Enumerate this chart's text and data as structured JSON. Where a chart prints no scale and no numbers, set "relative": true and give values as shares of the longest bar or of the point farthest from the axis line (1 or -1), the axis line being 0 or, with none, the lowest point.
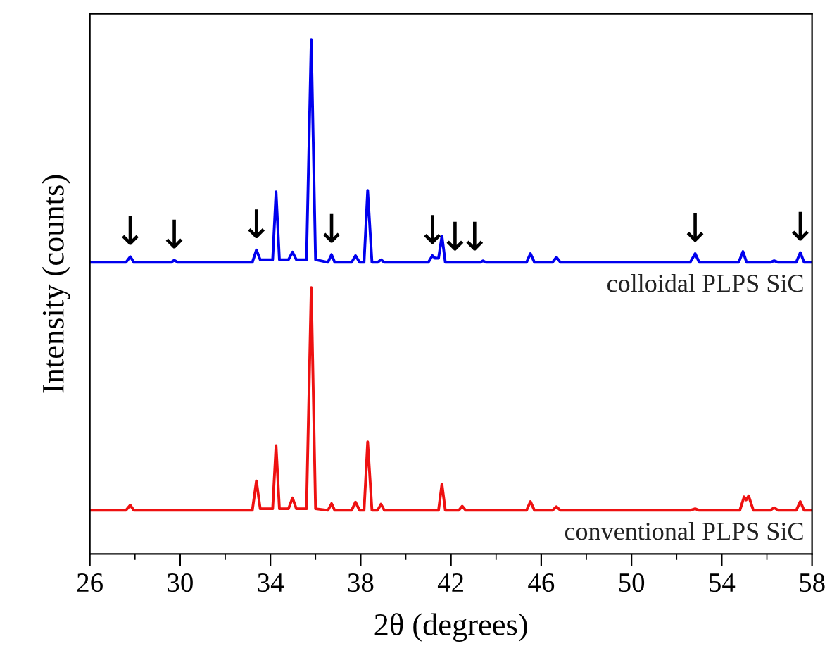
{
  "chart_data": {
    "type": "line",
    "relative": true,
    "xlabel": "2θ (degrees)",
    "ylabel": "Intensity (counts)",
    "xlim": [
      26,
      58
    ],
    "xticks": [
      26,
      {
        "value": 28,
        "label": null
      },
      30,
      {
        "value": 32,
        "label": null
      },
      34,
      {
        "value": 36,
        "label": null
      },
      38,
      {
        "value": 40,
        "label": null
      },
      42,
      {
        "value": 44,
        "label": null
      },
      46,
      {
        "value": 48,
        "label": null
      },
      50,
      {
        "value": 52,
        "label": null
      },
      54,
      {
        "value": 56,
        "label": null
      },
      58
    ],
    "grid": false,
    "legend": false,
    "marker": "none",
    "line_style": "solid",
    "tick_labels": "x",
    "series": [
      {
        "name": "colloidal PLPS SiC",
        "color": "#0000ee",
        "x": [
          26,
          27.6,
          27.79,
          27.95,
          29.6,
          29.74,
          29.9,
          33.2,
          33.38,
          33.55,
          33.65,
          34.1,
          34.25,
          34.4,
          34.8,
          34.98,
          35.15,
          35.6,
          35.81,
          36.0,
          36.55,
          36.71,
          36.85,
          37.6,
          37.77,
          37.95,
          38.15,
          38.31,
          38.5,
          38.75,
          38.9,
          39.05,
          41.0,
          41.18,
          41.3,
          41.45,
          41.6,
          41.75,
          43.3,
          43.42,
          43.55,
          45.35,
          45.52,
          45.7,
          46.5,
          46.67,
          46.85,
          52.6,
          52.82,
          53.0,
          54.75,
          54.94,
          55.1,
          56.15,
          56.32,
          56.5,
          57.3,
          57.48,
          57.65,
          58
        ],
        "values": [
          0.567,
          0.567,
          0.578,
          0.567,
          0.567,
          0.571,
          0.567,
          0.567,
          0.591,
          0.572,
          0.572,
          0.572,
          0.704,
          0.572,
          0.572,
          0.587,
          0.572,
          0.572,
          1.0,
          0.572,
          0.567,
          0.582,
          0.567,
          0.567,
          0.58,
          0.567,
          0.567,
          0.707,
          0.567,
          0.567,
          0.572,
          0.567,
          0.567,
          0.58,
          0.575,
          0.575,
          0.618,
          0.567,
          0.567,
          0.57,
          0.567,
          0.567,
          0.584,
          0.567,
          0.567,
          0.577,
          0.567,
          0.567,
          0.584,
          0.567,
          0.567,
          0.588,
          0.567,
          0.567,
          0.57,
          0.567,
          0.567,
          0.586,
          0.567,
          0.567
        ]
      },
      {
        "name": "conventional PLPS SiC",
        "color": "#ee1111",
        "x": [
          26,
          27.6,
          27.79,
          27.95,
          33.2,
          33.38,
          33.55,
          33.65,
          34.1,
          34.25,
          34.4,
          34.8,
          34.98,
          35.15,
          35.6,
          35.81,
          36.0,
          36.55,
          36.71,
          36.85,
          37.6,
          37.77,
          37.95,
          38.15,
          38.31,
          38.5,
          38.75,
          38.9,
          39.05,
          41.45,
          41.6,
          41.75,
          42.35,
          42.5,
          42.65,
          45.35,
          45.52,
          45.7,
          46.5,
          46.67,
          46.85,
          52.6,
          52.82,
          53.0,
          54.8,
          54.99,
          55.08,
          55.19,
          55.4,
          56.15,
          56.32,
          56.5,
          57.3,
          57.48,
          57.65,
          58
        ],
        "values": [
          0.085,
          0.085,
          0.095,
          0.085,
          0.085,
          0.142,
          0.088,
          0.088,
          0.088,
          0.211,
          0.088,
          0.088,
          0.109,
          0.088,
          0.088,
          0.518,
          0.088,
          0.085,
          0.098,
          0.085,
          0.085,
          0.101,
          0.085,
          0.085,
          0.218,
          0.085,
          0.085,
          0.097,
          0.085,
          0.085,
          0.136,
          0.085,
          0.085,
          0.093,
          0.085,
          0.085,
          0.102,
          0.085,
          0.085,
          0.092,
          0.085,
          0.085,
          0.088,
          0.085,
          0.085,
          0.111,
          0.105,
          0.113,
          0.085,
          0.085,
          0.09,
          0.085,
          0.085,
          0.102,
          0.085,
          0.085
        ]
      }
    ],
    "annotations": [
      {
        "text": "↓",
        "x": 27.79,
        "y": 0.578
      },
      {
        "text": "↓",
        "x": 29.74,
        "y": 0.571
      },
      {
        "text": "↓",
        "x": 33.38,
        "y": 0.591
      },
      {
        "text": "↓",
        "x": 36.71,
        "y": 0.582
      },
      {
        "text": "↓",
        "x": 41.18,
        "y": 0.58
      },
      {
        "text": "↓",
        "x": 42.18,
        "y": 0.567
      },
      {
        "text": "↓",
        "x": 43.05,
        "y": 0.567
      },
      {
        "text": "↓",
        "x": 52.82,
        "y": 0.584
      },
      {
        "text": "↓",
        "x": 57.48,
        "y": 0.586
      }
    ]
  }
}
